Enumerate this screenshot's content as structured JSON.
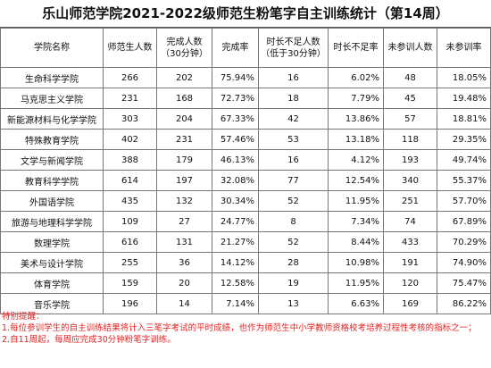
{
  "title": "乐山师范学院2021-2022级师范生粉笔字自主训练统计（第14周）",
  "headers": [
    "学院名称",
    "师范生人数",
    "完成人数（30分钟）",
    "完成率",
    "时长不足人数（低于30分钟）",
    "时长不足率",
    "未参训人数",
    "未参训率"
  ],
  "rows": [
    [
      "生命科学学院",
      "266",
      "202",
      "75.94%",
      "16",
      "6.02%",
      "48",
      "18.05%"
    ],
    [
      "马克思主义学院",
      "231",
      "168",
      "72.73%",
      "18",
      "7.79%",
      "45",
      "19.48%"
    ],
    [
      "新能源材料与化学学院",
      "303",
      "204",
      "67.33%",
      "42",
      "13.86%",
      "57",
      "18.81%"
    ],
    [
      "特殊教育学院",
      "402",
      "231",
      "57.46%",
      "53",
      "13.18%",
      "118",
      "29.35%"
    ],
    [
      "文学与新闻学院",
      "388",
      "179",
      "46.13%",
      "16",
      "4.12%",
      "193",
      "49.74%"
    ],
    [
      "教育科学学院",
      "614",
      "197",
      "32.08%",
      "77",
      "12.54%",
      "340",
      "55.37%"
    ],
    [
      "外国语学院",
      "435",
      "132",
      "30.34%",
      "52",
      "11.95%",
      "251",
      "57.70%"
    ],
    [
      "旅游与地理科学学院",
      "109",
      "27",
      "24.77%",
      "8",
      "7.34%",
      "74",
      "67.89%"
    ],
    [
      "数理学院",
      "616",
      "131",
      "21.27%",
      "52",
      "8.44%",
      "433",
      "70.29%"
    ],
    [
      "美术与设计学院",
      "255",
      "36",
      "14.12%",
      "28",
      "10.98%",
      "191",
      "74.90%"
    ],
    [
      "体育学院",
      "159",
      "20",
      "12.58%",
      "19",
      "11.95%",
      "120",
      "75.47%"
    ],
    [
      "音乐学院",
      "196",
      "14",
      "7.14%",
      "13",
      "6.63%",
      "169",
      "86.22%"
    ]
  ],
  "notes": {
    "heading": "特别提醒：",
    "items": [
      "1.每位参训学生的自主训练结果将计入三笔字考试的平时成绩，也作为师范生中小学教师资格校考培养过程性考核的指标之一；",
      "2.自11周起，每周应完成30分钟粉笔字训练。"
    ]
  },
  "colors": {
    "note_text": "#e32222",
    "border": "#777777"
  }
}
